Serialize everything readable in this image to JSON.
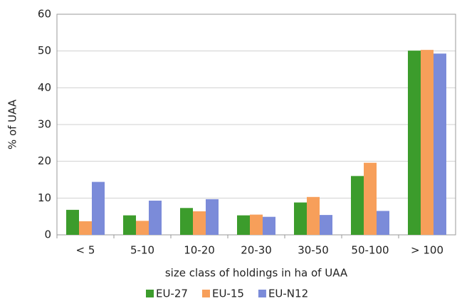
{
  "chart_data": {
    "type": "bar",
    "x_label": "size class of holdings in ha of UAA",
    "y_label": "% of UAA",
    "categories": [
      "< 5",
      "5-10",
      "10-20",
      "20-30",
      "30-50",
      "50-100",
      "> 100"
    ],
    "series": [
      {
        "name": "EU-27",
        "color": "#3c9c2c",
        "values": [
          6.8,
          5.3,
          7.3,
          5.3,
          8.8,
          16.0,
          50.1
        ]
      },
      {
        "name": "EU-15",
        "color": "#f79f5a",
        "values": [
          3.7,
          3.8,
          6.4,
          5.5,
          10.3,
          19.6,
          50.3
        ]
      },
      {
        "name": "EU-N12",
        "color": "#7b8bd9",
        "values": [
          14.4,
          9.3,
          9.7,
          4.9,
          5.4,
          6.5,
          49.3
        ]
      }
    ],
    "ylim": [
      0,
      60
    ],
    "yticks": [
      0,
      10,
      20,
      30,
      40,
      50,
      60
    ],
    "grid": true
  }
}
